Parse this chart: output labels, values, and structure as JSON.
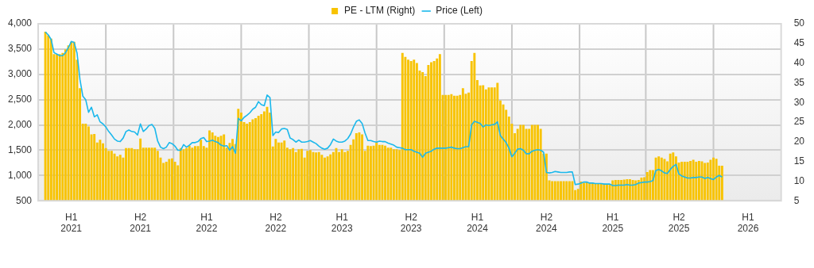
{
  "chart_data": {
    "type": "bar",
    "legend": "top",
    "grid": true,
    "categories": [
      null,
      null,
      null,
      null,
      null,
      null,
      null,
      null,
      null,
      null,
      null,
      "H1 2021",
      null,
      null,
      null,
      null,
      null,
      null,
      null,
      null,
      null,
      null,
      null,
      null,
      null,
      null,
      null,
      null,
      null,
      null,
      null,
      null,
      null,
      null,
      null,
      "H2 2021",
      null,
      null,
      null,
      null,
      null,
      null,
      null,
      null,
      null,
      null,
      null,
      null,
      null,
      null,
      null,
      null,
      null,
      null,
      null,
      null,
      null,
      null,
      "H1 2022",
      null,
      null,
      null,
      null,
      null,
      null,
      null,
      null,
      null,
      null,
      null,
      null,
      null,
      null,
      null,
      null,
      null,
      null,
      null,
      null,
      null,
      null,
      null,
      "H2 2022",
      null,
      null,
      null,
      null,
      null,
      null,
      null,
      null,
      null,
      null,
      null,
      null,
      null,
      null,
      null,
      null,
      null,
      null,
      null,
      null,
      null,
      null,
      "H1 2023",
      null,
      null,
      null,
      null,
      null,
      null,
      null,
      null,
      null,
      null,
      null,
      null,
      null,
      null,
      null,
      null,
      null,
      null,
      null,
      null,
      null,
      null,
      null,
      "H2 2023",
      null,
      null,
      null,
      null,
      null,
      null,
      null,
      null,
      null,
      null,
      null,
      null,
      null,
      null,
      null,
      null,
      null,
      null,
      null,
      null,
      null,
      null,
      "H1 2024",
      null,
      null,
      null,
      null,
      null,
      null,
      null,
      null,
      null,
      null,
      null,
      null,
      null,
      null,
      null,
      null,
      null,
      null,
      null,
      null,
      null,
      null,
      null,
      "H2 2024",
      null,
      null,
      null,
      null,
      null,
      null,
      null,
      null,
      null,
      null,
      null,
      null,
      null,
      null,
      null,
      null,
      null,
      null,
      null,
      null,
      null,
      null,
      "H1 2025",
      null,
      null,
      null,
      null,
      null,
      null,
      null,
      null,
      null,
      null,
      null,
      null,
      null,
      null,
      null,
      null,
      null,
      null,
      null,
      null,
      null,
      null,
      "H2 2025",
      null,
      null,
      null,
      null,
      null,
      null,
      null,
      null,
      null,
      null,
      null,
      null,
      null,
      null,
      null,
      null,
      null,
      null,
      null,
      null,
      null,
      null,
      null,
      "H1 2026",
      null,
      null,
      null,
      null,
      null,
      null,
      null,
      null,
      null,
      null,
      null
    ],
    "ylim": [
      500,
      4000
    ],
    "yticks": [
      500,
      {
        "value": 1000,
        "label": "1,000"
      },
      {
        "value": 1500,
        "label": "1,500"
      },
      {
        "value": 2000,
        "label": "2,000"
      },
      {
        "value": 2500,
        "label": "2,500"
      },
      {
        "value": 3000,
        "label": "3,000"
      },
      {
        "value": 3500,
        "label": "3,500"
      },
      {
        "value": 4000,
        "label": "4,000"
      }
    ],
    "y2lim": [
      5,
      50
    ],
    "y2ticks": [
      5,
      10,
      15,
      20,
      25,
      30,
      35,
      40,
      45,
      50
    ],
    "series": [
      {
        "name": "PE - LTM (Right)",
        "color": "#f8c300",
        "axis": "y2",
        "values": [
          null,
          null,
          48,
          47.1,
          46.2,
          42.3,
          42.3,
          42.3,
          42.6,
          43.5,
          44.5,
          45.4,
          45.4,
          40.9,
          33.6,
          24.6,
          24.6,
          23.9,
          21.9,
          22,
          19.8,
          20.5,
          19.6,
          18.4,
          17.7,
          17.7,
          17,
          16.3,
          16.7,
          16,
          18.4,
          18.4,
          18.4,
          18.1,
          18.1,
          20.8,
          18.5,
          18.5,
          18.5,
          18.5,
          18.5,
          17.7,
          16,
          14.6,
          14.9,
          15.6,
          15.8,
          14.9,
          14,
          18.4,
          18.1,
          18.4,
          19,
          18.5,
          18.9,
          18.9,
          20.5,
          18.9,
          18.5,
          22.9,
          22.4,
          21.5,
          21.2,
          21.5,
          21.9,
          18.5,
          19.7,
          20.7,
          19.4,
          28.4,
          27.4,
          25,
          24.6,
          25,
          25.7,
          26,
          26.6,
          27,
          27.7,
          28.9,
          27.4,
          18.8,
          20.7,
          19.8,
          19.8,
          20.3,
          18.5,
          18.1,
          18.4,
          17.4,
          18.1,
          18.2,
          16,
          17.7,
          17.9,
          17.4,
          17.3,
          17.4,
          16.7,
          16,
          16.3,
          16.8,
          17.4,
          18.4,
          17.4,
          18.1,
          17.4,
          17.7,
          19.2,
          20.6,
          22.2,
          22.4,
          21.9,
          17.7,
          19,
          18.9,
          19,
          19.8,
          19.2,
          19.2,
          19,
          18.5,
          18.5,
          18.1,
          18.1,
          17.9,
          42.6,
          41.6,
          40.9,
          40.5,
          40.9,
          40,
          38.1,
          37.7,
          36.7,
          39.5,
          40.2,
          40.5,
          41.2,
          42.3,
          31.9,
          31.9,
          31.9,
          32.1,
          31.7,
          31.7,
          31.9,
          33.6,
          32.2,
          32.5,
          40.5,
          42.6,
          35.7,
          34.3,
          34.4,
          33.3,
          33.8,
          33.8,
          33.8,
          35,
          30.5,
          29.5,
          28.1,
          26.4,
          24.6,
          22.2,
          23.3,
          24.3,
          24.3,
          23.3,
          23.3,
          24.3,
          24.3,
          24.3,
          23.3,
          17,
          17,
          10.2,
          10,
          10,
          10,
          10,
          10,
          10,
          10,
          10,
          7.7,
          8,
          9.9,
          9.6,
          9.7,
          9.6,
          9.6,
          9.5,
          9.4,
          9.4,
          9.3,
          9.2,
          9.2,
          10.2,
          10.3,
          10.3,
          10.3,
          10.4,
          10.5,
          10.5,
          10.3,
          10.2,
          10.3,
          10.9,
          11,
          12.3,
          12.8,
          12.8,
          16,
          16.3,
          16,
          15.6,
          15,
          17,
          17.3,
          16.3,
          14.7,
          14.9,
          14.9,
          14.9,
          15.1,
          15.4,
          14.9,
          15.1,
          15,
          14.6,
          14.7,
          15.4,
          16,
          15.7,
          13.9,
          13.9,
          null,
          null,
          null,
          null,
          null,
          null,
          null,
          null,
          null,
          null,
          null,
          null,
          null,
          null,
          null,
          null,
          null,
          null,
          null,
          null
        ]
      },
      {
        "type": "line",
        "name": "Price (Left)",
        "color": "#1bb8ec",
        "axis": "y",
        "values": [
          null,
          null,
          3840,
          3780,
          3690,
          3430,
          3400,
          3370,
          3370,
          3430,
          3530,
          3650,
          3630,
          3420,
          2900,
          2570,
          2500,
          2250,
          2350,
          2160,
          2200,
          2060,
          2020,
          1960,
          1870,
          1800,
          1720,
          1680,
          1670,
          1740,
          1870,
          1900,
          1870,
          1860,
          1800,
          2020,
          1870,
          1920,
          1990,
          2010,
          1930,
          1680,
          1560,
          1530,
          1560,
          1650,
          1630,
          1580,
          1500,
          1500,
          1610,
          1560,
          1600,
          1650,
          1650,
          1670,
          1730,
          1750,
          1670,
          1680,
          1700,
          1670,
          1650,
          1600,
          1580,
          1590,
          1500,
          1570,
          1440,
          2130,
          2080,
          2150,
          2190,
          2240,
          2310,
          2350,
          2460,
          2400,
          2380,
          2590,
          2540,
          1790,
          1860,
          1850,
          1920,
          1930,
          1910,
          1740,
          1710,
          1660,
          1700,
          1660,
          1660,
          1670,
          1690,
          1660,
          1630,
          1580,
          1540,
          1520,
          1540,
          1610,
          1720,
          1680,
          1660,
          1660,
          1680,
          1730,
          1820,
          1960,
          2070,
          2100,
          2030,
          1840,
          1690,
          1690,
          1670,
          1660,
          1680,
          1670,
          1670,
          1640,
          1620,
          1600,
          1560,
          1550,
          1540,
          1510,
          1510,
          1510,
          1480,
          1460,
          1440,
          1360,
          1440,
          1460,
          1480,
          1520,
          1540,
          1540,
          1540,
          1540,
          1550,
          1560,
          1540,
          1530,
          1530,
          1550,
          1570,
          1570,
          2000,
          2070,
          2050,
          2030,
          1960,
          2000,
          1990,
          2000,
          2010,
          2060,
          1790,
          1720,
          1650,
          1540,
          1370,
          1440,
          1520,
          1530,
          1500,
          1430,
          1430,
          1480,
          1500,
          1510,
          1500,
          1460,
          1060,
          1050,
          1060,
          1080,
          1070,
          1060,
          1060,
          1060,
          1070,
          1070,
          820,
          830,
          850,
          870,
          870,
          850,
          850,
          840,
          840,
          840,
          830,
          830,
          830,
          800,
          800,
          810,
          810,
          810,
          820,
          810,
          810,
          820,
          850,
          860,
          870,
          870,
          880,
          900,
          1100,
          1120,
          1090,
          1050,
          1040,
          1120,
          1180,
          1220,
          1030,
          990,
          970,
          950,
          950,
          960,
          960,
          970,
          970,
          940,
          960,
          940,
          920,
          970,
          1000,
          970,
          null,
          null,
          null,
          null,
          null,
          null,
          null,
          null,
          null,
          null,
          null,
          null,
          null,
          null,
          null,
          null,
          null,
          null,
          null,
          null
        ]
      }
    ]
  }
}
